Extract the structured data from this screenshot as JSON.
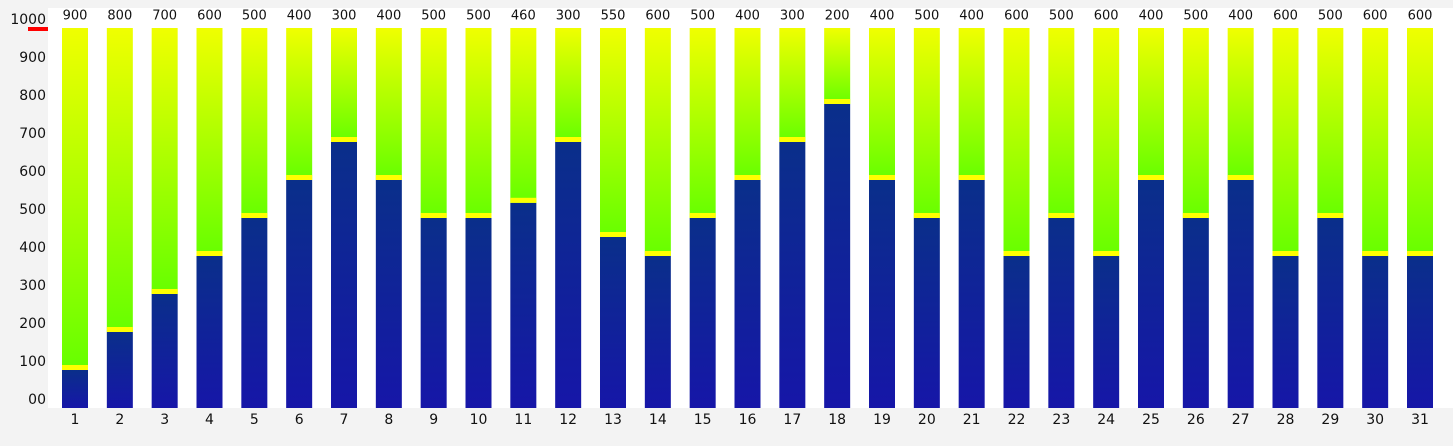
{
  "chart_data": {
    "type": "stacked-bar",
    "categories": [
      "1",
      "2",
      "3",
      "4",
      "5",
      "6",
      "7",
      "8",
      "9",
      "10",
      "11",
      "12",
      "13",
      "14",
      "15",
      "16",
      "17",
      "18",
      "19",
      "20",
      "21",
      "22",
      "23",
      "24",
      "25",
      "26",
      "27",
      "28",
      "29",
      "30",
      "31"
    ],
    "series": [
      {
        "color": "#0a2f8a",
        "values": [
          100,
          200,
          300,
          400,
          500,
          600,
          700,
          600,
          500,
          500,
          540,
          700,
          450,
          400,
          500,
          600,
          700,
          800,
          600,
          500,
          600,
          400,
          500,
          400,
          600,
          500,
          600,
          400,
          500,
          400,
          400
        ]
      },
      {
        "color": "#66ff00",
        "values": [
          900,
          800,
          700,
          600,
          500,
          400,
          300,
          400,
          500,
          500,
          460,
          300,
          550,
          600,
          500,
          400,
          300,
          200,
          400,
          500,
          400,
          600,
          500,
          600,
          400,
          500,
          400,
          600,
          500,
          600,
          600
        ],
        "show_value_labels": true
      }
    ],
    "ylim": [
      0,
      1000
    ],
    "yticks": [
      {
        "value": 0,
        "label": "00"
      },
      100,
      200,
      300,
      400,
      500,
      600,
      700,
      800,
      900,
      1000
    ]
  }
}
